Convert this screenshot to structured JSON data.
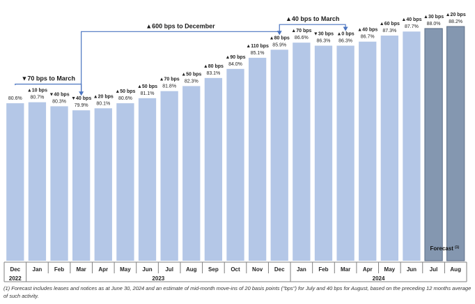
{
  "chart_data": {
    "type": "bar",
    "categories": [
      "Dec",
      "Jan",
      "Feb",
      "Mar",
      "Apr",
      "May",
      "Jun",
      "Jul",
      "Aug",
      "Sep",
      "Oct",
      "Nov",
      "Dec",
      "Jan",
      "Feb",
      "Mar",
      "Apr",
      "May",
      "Jun",
      "Jul",
      "Aug"
    ],
    "values": [
      80.6,
      80.7,
      80.3,
      79.9,
      80.1,
      80.6,
      81.1,
      81.8,
      82.3,
      83.1,
      84.0,
      85.1,
      85.9,
      86.6,
      86.3,
      86.3,
      86.7,
      87.3,
      87.7,
      88.0,
      88.2
    ],
    "value_labels": [
      "80.6%",
      "80.7%",
      "80.3%",
      "79.9%",
      "80.1%",
      "80.6%",
      "81.1%",
      "81.8%",
      "82.3%",
      "83.1%",
      "84.0%",
      "85.1%",
      "85.9%",
      "86.6%",
      "86.3%",
      "86.3%",
      "86.7%",
      "87.3%",
      "87.7%",
      "88.0%",
      "88.2%"
    ],
    "change_labels": [
      "",
      "▲10 bps",
      "▼40 bps",
      "▼40 bps",
      "▲20 bps",
      "▲50 bps",
      "▲50 bps",
      "▲70 bps",
      "▲50 bps",
      "▲80 bps",
      "▲90 bps",
      "▲110 bps",
      "▲80 bps",
      "▲70 bps",
      "▼30 bps",
      "▲0 bps",
      "▲40 bps",
      "▲60 bps",
      "▲40 bps",
      "▲30 bps",
      "▲20 bps"
    ],
    "forecast": [
      false,
      false,
      false,
      false,
      false,
      false,
      false,
      false,
      false,
      false,
      false,
      false,
      false,
      false,
      false,
      false,
      false,
      false,
      false,
      true,
      true
    ],
    "years": [
      {
        "label": "2022",
        "from": 0,
        "to": 0
      },
      {
        "label": "2023",
        "from": 1,
        "to": 12
      },
      {
        "label": "2024",
        "from": 13,
        "to": 20
      }
    ],
    "forecast_label": "Forecast",
    "forecast_superscript": "(1)",
    "annotations": [
      {
        "text": "▼70 bps to March",
        "from": 0,
        "to": 3
      },
      {
        "text": "▲600 bps to December",
        "from": 3,
        "to": 12
      },
      {
        "text": "▲40 bps to March",
        "from": 12,
        "to": 15
      }
    ],
    "colors": {
      "actual": "#b4c7e7",
      "forecast_fill": "#8497b0",
      "forecast_edge": "#5c6e87",
      "arrow": "#4a74c0",
      "text": "#222222"
    }
  },
  "footnote": "(1) Forecast includes leases and notices as at June 30, 2024 and an estimate of mid-month move-ins of 20 basis points (\"bps\") for July and 40 bps for August, based on the preceding 12 months average of such activity."
}
